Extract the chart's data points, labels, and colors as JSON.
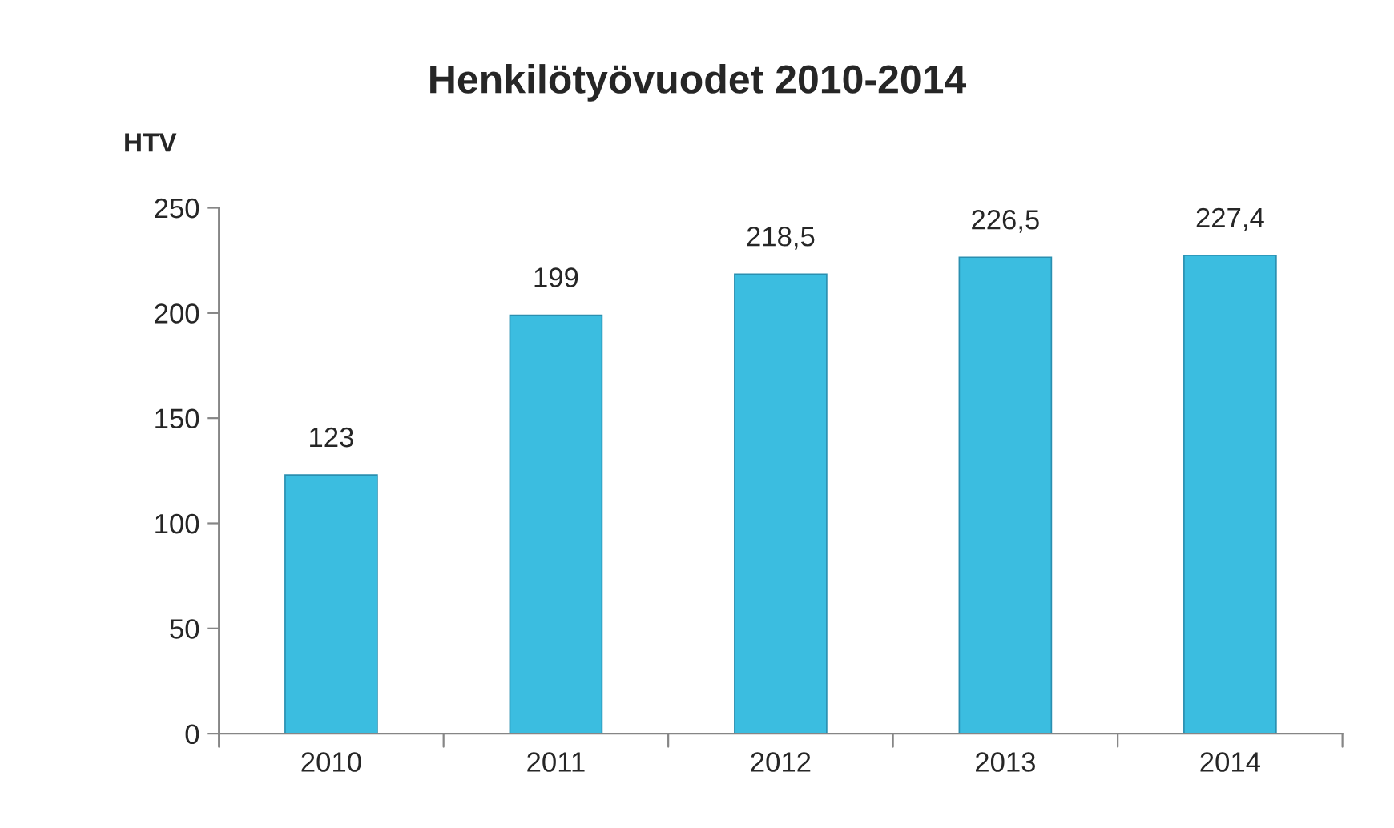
{
  "chart_data": {
    "type": "bar",
    "title": "Henkilötyövuodet 2010-2014",
    "ylabel": "HTV",
    "categories": [
      "2010",
      "2011",
      "2012",
      "2013",
      "2014"
    ],
    "values": [
      123,
      199,
      218.5,
      226.5,
      227.4
    ],
    "value_labels": [
      "123",
      "199",
      "218,5",
      "226,5",
      "227,4"
    ],
    "color": "#3bbde0",
    "ylim": [
      0,
      250
    ],
    "yticks": [
      0,
      50,
      100,
      150,
      200,
      250
    ],
    "grid": false,
    "legend": false
  }
}
